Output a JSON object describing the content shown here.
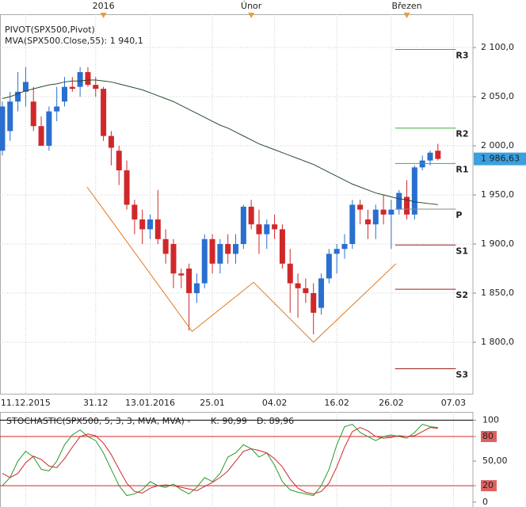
{
  "chart_data": [
    {
      "type": "candlestick",
      "title": "PIVOT(SPX500,Pivot)",
      "up_color": "#2a6fcf",
      "down_color": "#d0282a",
      "ohlc": [
        [
          1995,
          2045,
          1990,
          2040
        ],
        [
          2015,
          2055,
          2005,
          2045
        ],
        [
          2045,
          2075,
          2035,
          2055
        ],
        [
          2055,
          2080,
          2040,
          2065
        ],
        [
          2045,
          2060,
          2015,
          2020
        ],
        [
          2020,
          2030,
          2000,
          2000
        ],
        [
          2000,
          2040,
          1995,
          2035
        ],
        [
          2035,
          2060,
          2025,
          2040
        ],
        [
          2045,
          2070,
          2040,
          2060
        ],
        [
          2060,
          2070,
          2055,
          2058
        ],
        [
          2060,
          2080,
          2050,
          2075
        ],
        [
          2075,
          2080,
          2060,
          2062
        ],
        [
          2062,
          2070,
          2050,
          2058
        ],
        [
          2058,
          2060,
          2005,
          2010
        ],
        [
          2010,
          2015,
          1980,
          1998
        ],
        [
          1995,
          2000,
          1960,
          1975
        ],
        [
          1975,
          1985,
          1935,
          1940
        ],
        [
          1940,
          1945,
          1910,
          1925
        ],
        [
          1925,
          1935,
          1900,
          1915
        ],
        [
          1915,
          1930,
          1905,
          1925
        ],
        [
          1925,
          1955,
          1900,
          1905
        ],
        [
          1905,
          1915,
          1880,
          1890
        ],
        [
          1900,
          1905,
          1855,
          1870
        ],
        [
          1870,
          1875,
          1855,
          1868
        ],
        [
          1875,
          1880,
          1812,
          1850
        ],
        [
          1850,
          1870,
          1840,
          1860
        ],
        [
          1860,
          1910,
          1855,
          1905
        ],
        [
          1905,
          1910,
          1870,
          1880
        ],
        [
          1880,
          1905,
          1870,
          1900
        ],
        [
          1900,
          1910,
          1880,
          1890
        ],
        [
          1890,
          1910,
          1880,
          1900
        ],
        [
          1900,
          1940,
          1895,
          1938
        ],
        [
          1938,
          1945,
          1915,
          1920
        ],
        [
          1920,
          1935,
          1890,
          1910
        ],
        [
          1910,
          1925,
          1895,
          1920
        ],
        [
          1920,
          1930,
          1905,
          1915
        ],
        [
          1915,
          1920,
          1875,
          1880
        ],
        [
          1880,
          1895,
          1830,
          1860
        ],
        [
          1860,
          1870,
          1825,
          1855
        ],
        [
          1855,
          1865,
          1840,
          1850
        ],
        [
          1850,
          1860,
          1808,
          1830
        ],
        [
          1835,
          1870,
          1828,
          1865
        ],
        [
          1865,
          1895,
          1860,
          1890
        ],
        [
          1890,
          1900,
          1870,
          1895
        ],
        [
          1895,
          1910,
          1885,
          1900
        ],
        [
          1900,
          1945,
          1895,
          1940
        ],
        [
          1940,
          1945,
          1920,
          1935
        ],
        [
          1925,
          1935,
          1905,
          1920
        ],
        [
          1920,
          1940,
          1905,
          1935
        ],
        [
          1935,
          1950,
          1920,
          1930
        ],
        [
          1930,
          1945,
          1895,
          1935
        ],
        [
          1935,
          1955,
          1930,
          1952
        ],
        [
          1948,
          1965,
          1925,
          1930
        ],
        [
          1930,
          1980,
          1925,
          1978
        ],
        [
          1978,
          1990,
          1975,
          1985
        ],
        [
          1985,
          1995,
          1980,
          1993
        ],
        [
          1995,
          2002,
          1985,
          1986.63
        ]
      ],
      "last_label": "1 986,63",
      "tag_color": "#3aa0e0",
      "ma": {
        "name": "MVA(SPX500.Close,55): 1 940,1",
        "color": "#2b4a2b",
        "text_color": "#2e8b2e",
        "values": [
          2048,
          2050,
          2053,
          2056,
          2058,
          2060,
          2062,
          2063,
          2065,
          2066,
          2066,
          2067,
          2067,
          2066,
          2065,
          2063,
          2061,
          2059,
          2057,
          2054,
          2051,
          2048,
          2045,
          2041,
          2037,
          2033,
          2029,
          2025,
          2021,
          2018,
          2014,
          2010,
          2006,
          2002,
          1999,
          1996,
          1993,
          1990,
          1987,
          1984,
          1981,
          1977,
          1973,
          1969,
          1965,
          1961,
          1958,
          1955,
          1952,
          1950,
          1948,
          1946,
          1945,
          1943,
          1942,
          1941,
          1940.1
        ]
      },
      "pattern": {
        "color": "#e07b24",
        "x": [
          10.9,
          24.4,
          32.3,
          40,
          50.6
        ],
        "y": [
          1958,
          1811,
          1861,
          1800,
          1880
        ]
      },
      "pivots": [
        {
          "label": "R3",
          "value": 2098,
          "color": "#3cb043"
        },
        {
          "label": "R2",
          "value": 2018,
          "color": "#3cb043"
        },
        {
          "label": "R1",
          "value": 1982,
          "color": "#3cb043"
        },
        {
          "label": "P",
          "value": 1935.5,
          "color": "#888888"
        },
        {
          "label": "S1",
          "value": 1899,
          "color": "#9b1c1c"
        },
        {
          "label": "S2",
          "value": 1854,
          "color": "#9b1c1c"
        },
        {
          "label": "S3",
          "value": 1773,
          "color": "#9b1c1c"
        }
      ],
      "xlim": [
        -0.3,
        60.5
      ],
      "ylim": [
        1747.6,
        2133.9
      ],
      "yticks": [
        {
          "value": 2100,
          "label": "2 100,0"
        },
        {
          "value": 2050,
          "label": "2 050,0"
        },
        {
          "value": 2000,
          "label": "2 000,0"
        },
        {
          "value": 1950,
          "label": "1 950,0"
        },
        {
          "value": 1900,
          "label": "1 900,0"
        },
        {
          "value": 1850,
          "label": "1 850,0"
        },
        {
          "value": 1800,
          "label": "1 800,0"
        }
      ],
      "xticks": [
        {
          "value": 3,
          "label": "11.12.2015"
        },
        {
          "value": 12,
          "label": "31.12"
        },
        {
          "value": 19,
          "label": "13.01.2016"
        },
        {
          "value": 27,
          "label": "25.01"
        },
        {
          "value": 35,
          "label": "04.02"
        },
        {
          "value": 43,
          "label": "16.02"
        },
        {
          "value": 50,
          "label": "26.02"
        },
        {
          "value": 58,
          "label": "07.03"
        }
      ],
      "top_ticks": [
        {
          "value": 13,
          "label": "2016"
        },
        {
          "value": 32,
          "label": "Únor"
        },
        {
          "value": 52,
          "label": "Březen"
        }
      ],
      "grid": true
    },
    {
      "type": "stochastic",
      "title": "STOCHASTIC(SPX500, 5, 3, 3, MVA, MVA) -",
      "xlim": [
        -0.3,
        60.5
      ],
      "ylim": [
        -6,
        110
      ],
      "series": [
        {
          "name": "K: 90,99",
          "color": "#2a9a2a",
          "values": [
            20,
            30,
            50,
            62,
            55,
            40,
            38,
            50,
            70,
            82,
            88,
            80,
            75,
            60,
            40,
            20,
            8,
            10,
            15,
            25,
            20,
            18,
            22,
            15,
            10,
            18,
            30,
            25,
            35,
            55,
            60,
            70,
            65,
            55,
            60,
            45,
            25,
            15,
            12,
            10,
            8,
            20,
            40,
            70,
            92,
            95,
            85,
            80,
            75,
            80,
            82,
            80,
            78,
            85,
            95,
            92,
            90.99
          ]
        },
        {
          "name": "D: 89,96",
          "color": "#d0282a",
          "values": [
            35,
            30,
            35,
            48,
            56,
            52,
            44,
            42,
            53,
            67,
            80,
            83,
            81,
            72,
            58,
            40,
            23,
            13,
            11,
            17,
            20,
            21,
            20,
            18,
            16,
            14,
            19,
            24,
            30,
            38,
            50,
            62,
            65,
            63,
            60,
            53,
            43,
            28,
            17,
            12,
            10,
            13,
            23,
            43,
            67,
            86,
            91,
            87,
            80,
            78,
            79,
            81,
            80,
            81,
            86,
            91,
            89.96
          ]
        }
      ],
      "hlines": [
        {
          "value": 100,
          "color": "#000000"
        },
        {
          "value": 80,
          "color": "#d0282a"
        },
        {
          "value": 20,
          "color": "#d0282a"
        }
      ],
      "yticks": [
        100,
        80,
        {
          "value": 50,
          "label": "50,00"
        },
        20,
        0
      ]
    }
  ]
}
